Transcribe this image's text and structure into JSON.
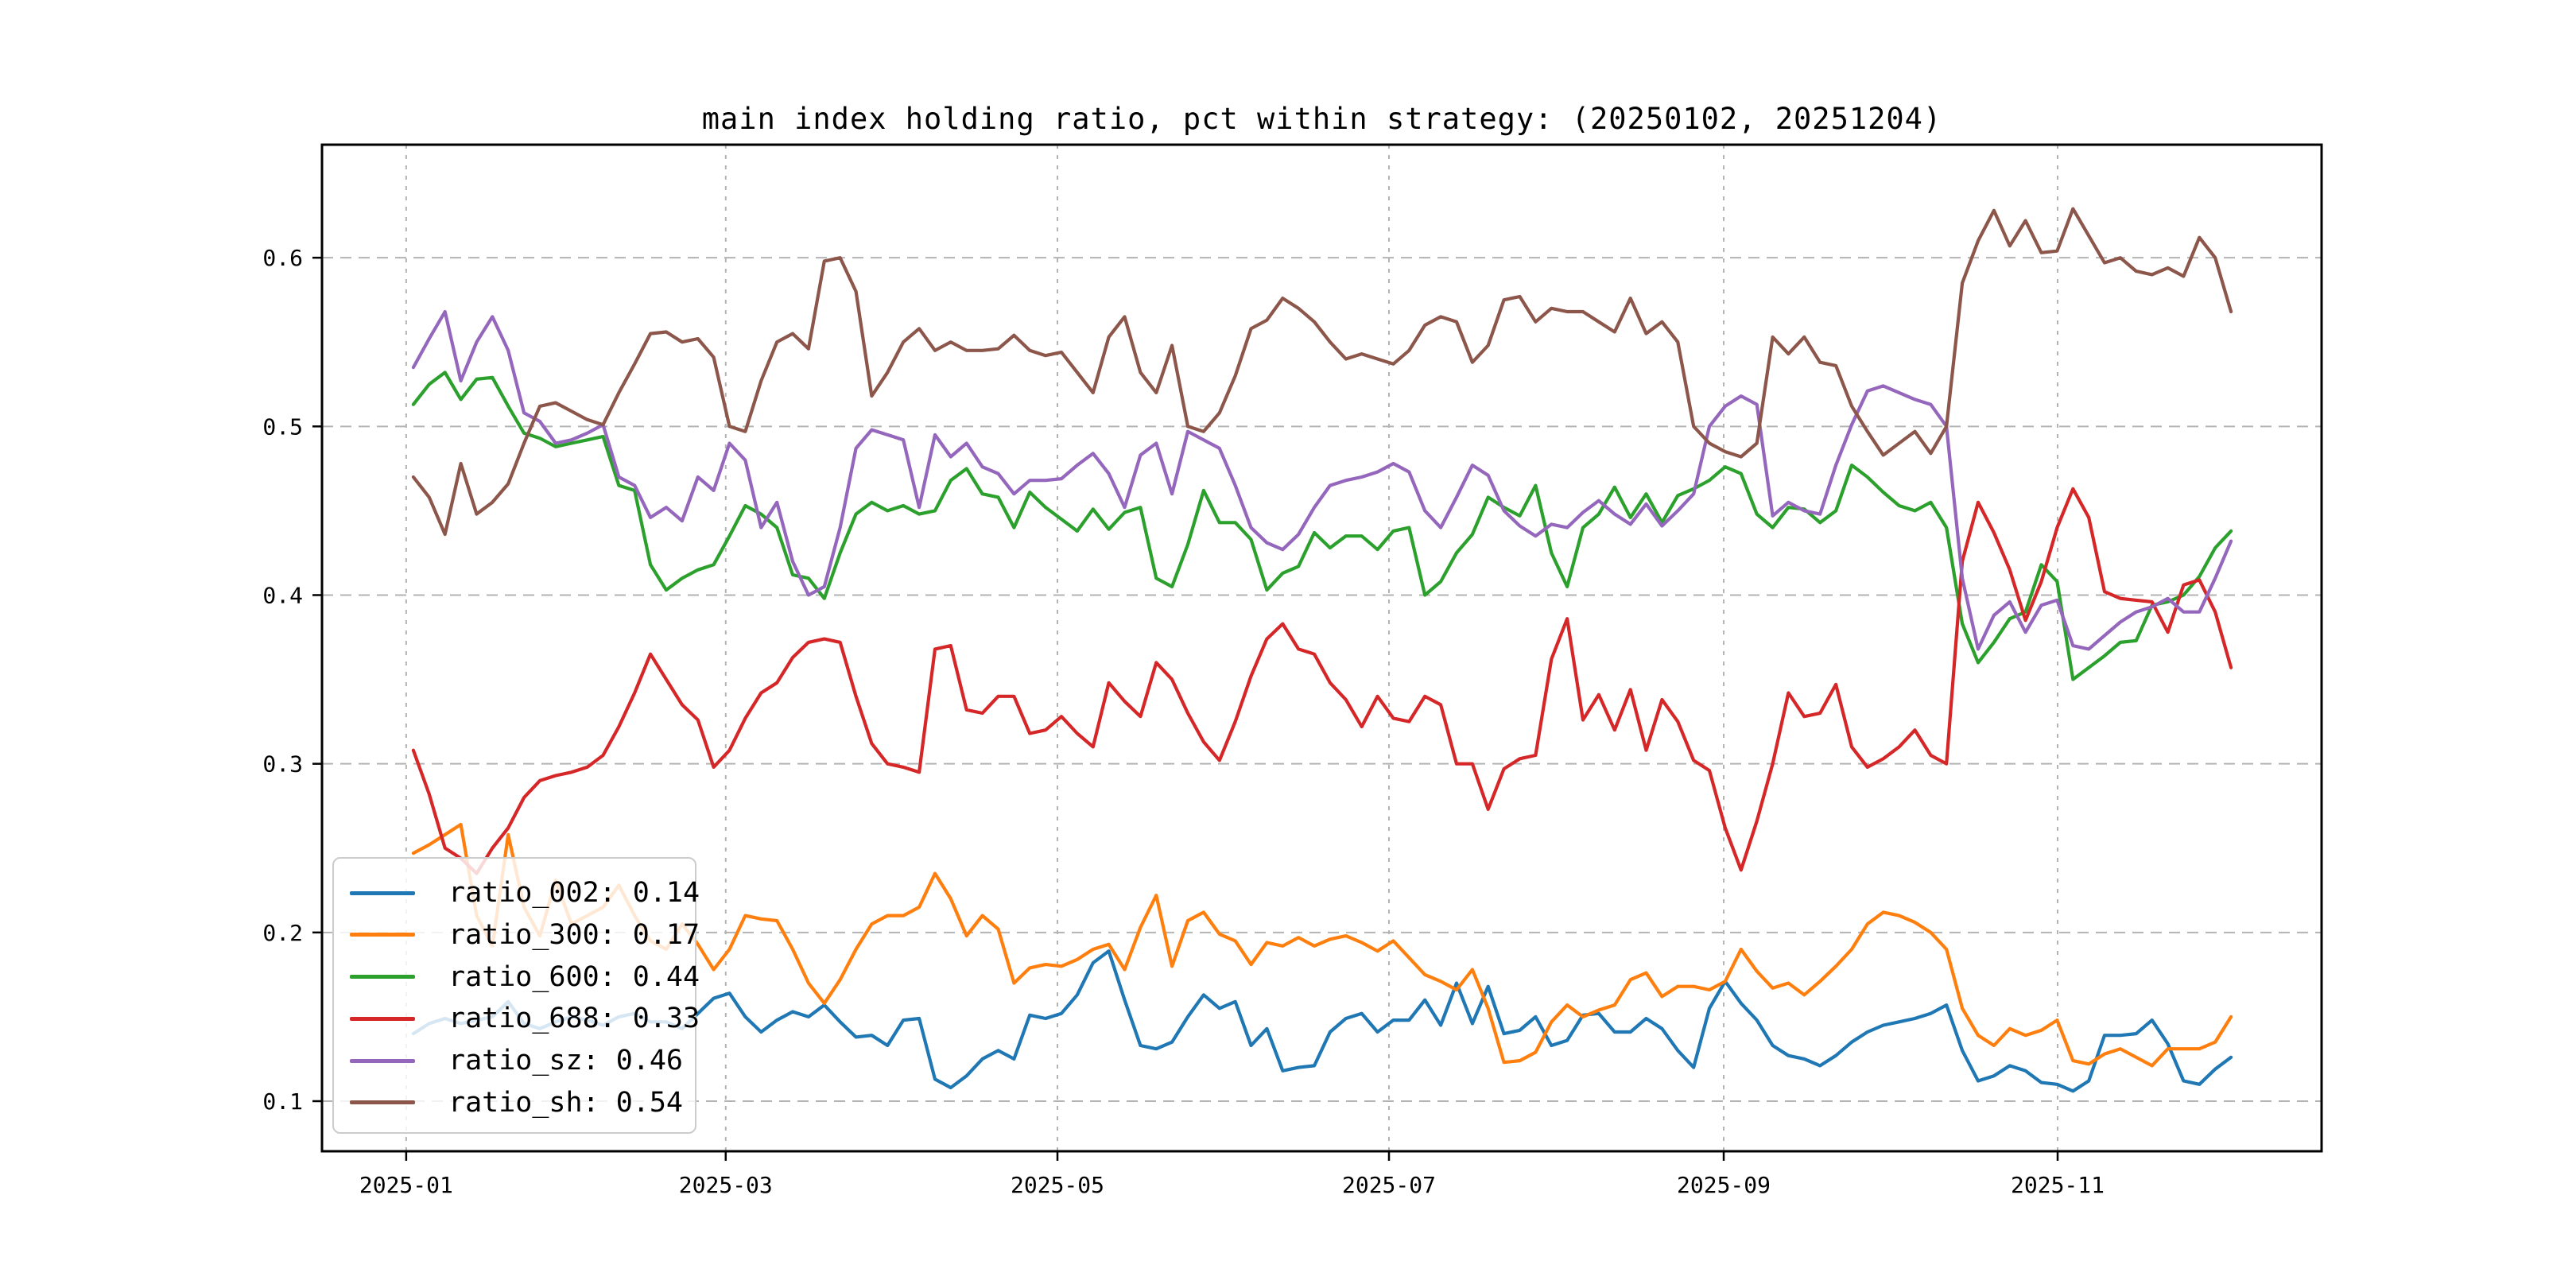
{
  "title": "main index holding ratio, pct within strategy: (20250102, 20251204)",
  "chart_data": {
    "type": "line",
    "title": "main index holding ratio, pct within strategy: (20250102, 20251204)",
    "xlabel": "",
    "ylabel": "",
    "grid": true,
    "legend_position": "lower left",
    "ylim": [
      0.0703,
      0.667
    ],
    "y_ticks": [
      0.1,
      0.2,
      0.3,
      0.4,
      0.5,
      0.6
    ],
    "y_tick_labels": [
      "0.1",
      "0.2",
      "0.3",
      "0.4",
      "0.5",
      "0.6"
    ],
    "x_tick_labels": [
      "2025-01",
      "2025-03",
      "2025-05",
      "2025-07",
      "2025-09",
      "2025-11"
    ],
    "n_points": 116,
    "series": [
      {
        "name": "ratio_002",
        "legend_label": "ratio_002: 0.14",
        "color": "#1f77b4",
        "values": [
          0.14,
          0.146,
          0.149,
          0.146,
          0.148,
          0.15,
          0.159,
          0.146,
          0.143,
          0.147,
          0.15,
          0.148,
          0.145,
          0.15,
          0.152,
          0.147,
          0.147,
          0.143,
          0.152,
          0.161,
          0.164,
          0.15,
          0.141,
          0.148,
          0.153,
          0.15,
          0.157,
          0.147,
          0.138,
          0.139,
          0.133,
          0.148,
          0.149,
          0.113,
          0.108,
          0.115,
          0.125,
          0.13,
          0.125,
          0.151,
          0.149,
          0.152,
          0.163,
          0.182,
          0.189,
          0.16,
          0.133,
          0.131,
          0.135,
          0.15,
          0.163,
          0.155,
          0.159,
          0.133,
          0.143,
          0.118,
          0.12,
          0.121,
          0.141,
          0.149,
          0.152,
          0.141,
          0.148,
          0.148,
          0.16,
          0.145,
          0.17,
          0.146,
          0.168,
          0.14,
          0.142,
          0.15,
          0.133,
          0.136,
          0.151,
          0.152,
          0.141,
          0.141,
          0.149,
          0.143,
          0.13,
          0.12,
          0.155,
          0.171,
          0.158,
          0.148,
          0.133,
          0.127,
          0.125,
          0.121,
          0.127,
          0.135,
          0.141,
          0.145,
          0.147,
          0.149,
          0.152,
          0.157,
          0.13,
          0.112,
          0.115,
          0.121,
          0.118,
          0.111,
          0.11,
          0.106,
          0.112,
          0.139,
          0.139,
          0.14,
          0.148,
          0.134,
          0.112,
          0.11,
          0.119,
          0.126
        ]
      },
      {
        "name": "ratio_300",
        "legend_label": "ratio_300: 0.17",
        "color": "#ff7f0e",
        "values": [
          0.247,
          0.252,
          0.258,
          0.264,
          0.21,
          0.192,
          0.258,
          0.215,
          0.198,
          0.231,
          0.205,
          0.21,
          0.215,
          0.228,
          0.21,
          0.195,
          0.19,
          0.205,
          0.193,
          0.178,
          0.19,
          0.21,
          0.208,
          0.207,
          0.19,
          0.17,
          0.158,
          0.172,
          0.19,
          0.205,
          0.21,
          0.21,
          0.215,
          0.235,
          0.22,
          0.198,
          0.21,
          0.202,
          0.17,
          0.179,
          0.181,
          0.18,
          0.184,
          0.19,
          0.193,
          0.178,
          0.203,
          0.222,
          0.18,
          0.207,
          0.212,
          0.199,
          0.195,
          0.181,
          0.194,
          0.192,
          0.197,
          0.192,
          0.196,
          0.198,
          0.194,
          0.189,
          0.195,
          0.185,
          0.175,
          0.171,
          0.166,
          0.178,
          0.155,
          0.123,
          0.124,
          0.129,
          0.147,
          0.157,
          0.15,
          0.154,
          0.157,
          0.172,
          0.176,
          0.162,
          0.168,
          0.168,
          0.166,
          0.171,
          0.19,
          0.177,
          0.167,
          0.17,
          0.163,
          0.171,
          0.18,
          0.19,
          0.205,
          0.212,
          0.21,
          0.206,
          0.2,
          0.19,
          0.155,
          0.139,
          0.133,
          0.143,
          0.139,
          0.142,
          0.148,
          0.124,
          0.122,
          0.128,
          0.131,
          0.126,
          0.121,
          0.131,
          0.131,
          0.131,
          0.135,
          0.15
        ]
      },
      {
        "name": "ratio_600",
        "legend_label": "ratio_600: 0.44",
        "color": "#2ca02c",
        "values": [
          0.513,
          0.525,
          0.532,
          0.516,
          0.528,
          0.529,
          0.512,
          0.496,
          0.493,
          0.488,
          0.49,
          0.492,
          0.494,
          0.465,
          0.462,
          0.418,
          0.403,
          0.41,
          0.415,
          0.418,
          0.435,
          0.453,
          0.448,
          0.44,
          0.412,
          0.41,
          0.398,
          0.425,
          0.448,
          0.455,
          0.45,
          0.453,
          0.448,
          0.45,
          0.468,
          0.475,
          0.46,
          0.458,
          0.44,
          0.461,
          0.452,
          0.445,
          0.438,
          0.451,
          0.439,
          0.449,
          0.452,
          0.41,
          0.405,
          0.43,
          0.462,
          0.443,
          0.443,
          0.433,
          0.403,
          0.413,
          0.417,
          0.437,
          0.428,
          0.435,
          0.435,
          0.427,
          0.438,
          0.44,
          0.4,
          0.408,
          0.425,
          0.436,
          0.458,
          0.452,
          0.447,
          0.465,
          0.425,
          0.405,
          0.44,
          0.448,
          0.464,
          0.446,
          0.46,
          0.443,
          0.459,
          0.463,
          0.468,
          0.476,
          0.472,
          0.448,
          0.44,
          0.452,
          0.451,
          0.443,
          0.45,
          0.477,
          0.47,
          0.461,
          0.453,
          0.45,
          0.455,
          0.44,
          0.383,
          0.36,
          0.372,
          0.386,
          0.39,
          0.418,
          0.408,
          0.35,
          0.357,
          0.364,
          0.372,
          0.373,
          0.394,
          0.396,
          0.4,
          0.411,
          0.428,
          0.438
        ]
      },
      {
        "name": "ratio_688",
        "legend_label": "ratio_688: 0.33",
        "color": "#d62728",
        "values": [
          0.308,
          0.282,
          0.25,
          0.244,
          0.235,
          0.25,
          0.262,
          0.28,
          0.29,
          0.293,
          0.295,
          0.298,
          0.305,
          0.322,
          0.342,
          0.365,
          0.35,
          0.335,
          0.326,
          0.298,
          0.308,
          0.327,
          0.342,
          0.348,
          0.363,
          0.372,
          0.374,
          0.372,
          0.34,
          0.312,
          0.3,
          0.298,
          0.295,
          0.368,
          0.37,
          0.332,
          0.33,
          0.34,
          0.34,
          0.318,
          0.32,
          0.328,
          0.318,
          0.31,
          0.348,
          0.337,
          0.328,
          0.36,
          0.35,
          0.33,
          0.313,
          0.302,
          0.325,
          0.352,
          0.374,
          0.383,
          0.368,
          0.365,
          0.348,
          0.338,
          0.322,
          0.34,
          0.327,
          0.325,
          0.34,
          0.335,
          0.3,
          0.3,
          0.273,
          0.297,
          0.303,
          0.305,
          0.362,
          0.386,
          0.326,
          0.341,
          0.32,
          0.344,
          0.308,
          0.338,
          0.325,
          0.302,
          0.296,
          0.262,
          0.237,
          0.266,
          0.3,
          0.342,
          0.328,
          0.33,
          0.347,
          0.31,
          0.298,
          0.303,
          0.31,
          0.32,
          0.305,
          0.3,
          0.42,
          0.455,
          0.437,
          0.415,
          0.385,
          0.408,
          0.44,
          0.463,
          0.446,
          0.402,
          0.398,
          0.397,
          0.396,
          0.378,
          0.406,
          0.409,
          0.39,
          0.357
        ]
      },
      {
        "name": "ratio_sz",
        "legend_label": "ratio_sz: 0.46",
        "color": "#9467bd",
        "values": [
          0.535,
          0.552,
          0.568,
          0.527,
          0.55,
          0.565,
          0.545,
          0.508,
          0.503,
          0.49,
          0.492,
          0.496,
          0.501,
          0.47,
          0.465,
          0.446,
          0.452,
          0.444,
          0.47,
          0.462,
          0.49,
          0.48,
          0.44,
          0.455,
          0.42,
          0.4,
          0.405,
          0.44,
          0.487,
          0.498,
          0.495,
          0.492,
          0.452,
          0.495,
          0.482,
          0.49,
          0.476,
          0.472,
          0.46,
          0.468,
          0.468,
          0.469,
          0.477,
          0.484,
          0.472,
          0.452,
          0.483,
          0.49,
          0.46,
          0.497,
          0.492,
          0.487,
          0.465,
          0.44,
          0.431,
          0.427,
          0.436,
          0.452,
          0.465,
          0.468,
          0.47,
          0.473,
          0.478,
          0.473,
          0.45,
          0.44,
          0.458,
          0.477,
          0.471,
          0.45,
          0.441,
          0.435,
          0.442,
          0.44,
          0.449,
          0.456,
          0.448,
          0.442,
          0.454,
          0.441,
          0.45,
          0.46,
          0.5,
          0.512,
          0.518,
          0.513,
          0.447,
          0.455,
          0.45,
          0.448,
          0.477,
          0.501,
          0.521,
          0.524,
          0.52,
          0.516,
          0.513,
          0.5,
          0.41,
          0.368,
          0.388,
          0.396,
          0.378,
          0.394,
          0.397,
          0.37,
          0.368,
          0.376,
          0.384,
          0.39,
          0.393,
          0.398,
          0.39,
          0.39,
          0.41,
          0.432
        ]
      },
      {
        "name": "ratio_sh",
        "legend_label": "ratio_sh: 0.54",
        "color": "#8c564b",
        "values": [
          0.47,
          0.458,
          0.436,
          0.478,
          0.448,
          0.455,
          0.466,
          0.49,
          0.512,
          0.514,
          0.509,
          0.504,
          0.501,
          0.52,
          0.537,
          0.555,
          0.556,
          0.55,
          0.552,
          0.541,
          0.5,
          0.497,
          0.527,
          0.55,
          0.555,
          0.546,
          0.598,
          0.6,
          0.58,
          0.518,
          0.532,
          0.55,
          0.558,
          0.545,
          0.55,
          0.545,
          0.545,
          0.546,
          0.554,
          0.545,
          0.542,
          0.544,
          0.532,
          0.52,
          0.553,
          0.565,
          0.532,
          0.52,
          0.548,
          0.5,
          0.497,
          0.508,
          0.53,
          0.558,
          0.563,
          0.576,
          0.57,
          0.562,
          0.55,
          0.54,
          0.543,
          0.54,
          0.537,
          0.545,
          0.56,
          0.565,
          0.562,
          0.538,
          0.548,
          0.575,
          0.577,
          0.562,
          0.57,
          0.568,
          0.568,
          0.562,
          0.556,
          0.576,
          0.555,
          0.562,
          0.55,
          0.5,
          0.49,
          0.485,
          0.482,
          0.49,
          0.553,
          0.543,
          0.553,
          0.538,
          0.536,
          0.512,
          0.497,
          0.483,
          0.49,
          0.497,
          0.484,
          0.5,
          0.585,
          0.61,
          0.628,
          0.607,
          0.622,
          0.603,
          0.604,
          0.629,
          0.613,
          0.597,
          0.6,
          0.592,
          0.59,
          0.594,
          0.589,
          0.612,
          0.6,
          0.568
        ]
      }
    ]
  }
}
